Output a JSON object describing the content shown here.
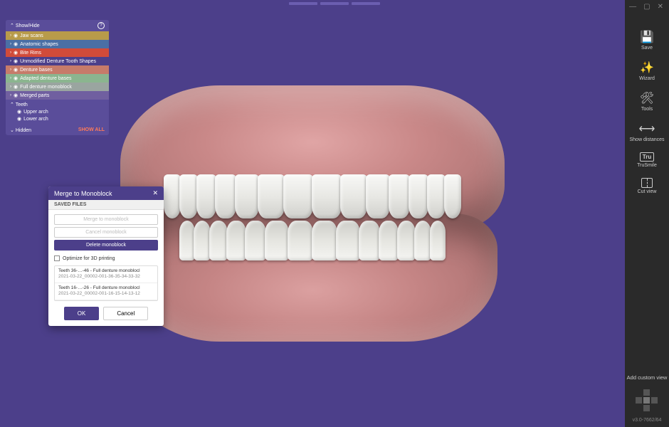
{
  "window": {
    "minimize": "—",
    "maximize": "▢",
    "close": "✕"
  },
  "showHide": {
    "title": "Show/Hide",
    "layers": [
      {
        "label": "Jaw scans",
        "bg": "#b89b4a"
      },
      {
        "label": "Anatomic shapes",
        "bg": "#4a6fa5"
      },
      {
        "label": "Bite Rims",
        "bg": "#d14b3a"
      },
      {
        "label": "Unmodified Denture Tooth Shapes",
        "bg": "#4c3f8a"
      },
      {
        "label": "Denture bases",
        "bg": "#c77b6a"
      },
      {
        "label": "Adapted denture bases",
        "bg": "#8bb58f"
      },
      {
        "label": "Full denture monoblock",
        "bg": "#9aa5a0"
      },
      {
        "label": "Merged parts",
        "bg": "#705fa0"
      }
    ],
    "teeth": {
      "title": "Teeth",
      "upper": "Upper arch",
      "lower": "Lower arch"
    },
    "hidden": "Hidden",
    "showAll": "SHOW ALL"
  },
  "dialog": {
    "title": "Merge to Monoblock",
    "tab": "SAVED FILES",
    "buttons": {
      "merge": "Merge to monoblock",
      "cancelMono": "Cancel monoblock",
      "delete": "Delete monoblock"
    },
    "optimize": "Optimize for 3D printing",
    "files": [
      {
        "l1": "Teeth 36-…-46 - Full denture monoblocl",
        "l2": "2021-03-22_00002-001-36-35-34-33-32"
      },
      {
        "l1": "Teeth 16-…-26 - Full denture monoblocl",
        "l2": "2021-03-22_00002-001-16-15-14-13-12"
      }
    ],
    "ok": "OK",
    "cancel": "Cancel"
  },
  "toolbar": {
    "save": "Save",
    "wizard": "Wizard",
    "tools": "Tools",
    "showDistances": "Show distances",
    "truSmile": "TruSmile",
    "cutView": "Cut view",
    "addCustom": "Add custom view"
  },
  "version": "v3.0-7662/64",
  "teeth": {
    "upper": [
      24,
      26,
      28,
      30,
      34,
      38,
      42,
      42,
      38,
      34,
      30,
      28,
      26,
      24
    ],
    "lower": [
      22,
      24,
      26,
      28,
      30,
      34,
      36,
      36,
      34,
      30,
      28,
      26,
      24,
      22
    ]
  }
}
